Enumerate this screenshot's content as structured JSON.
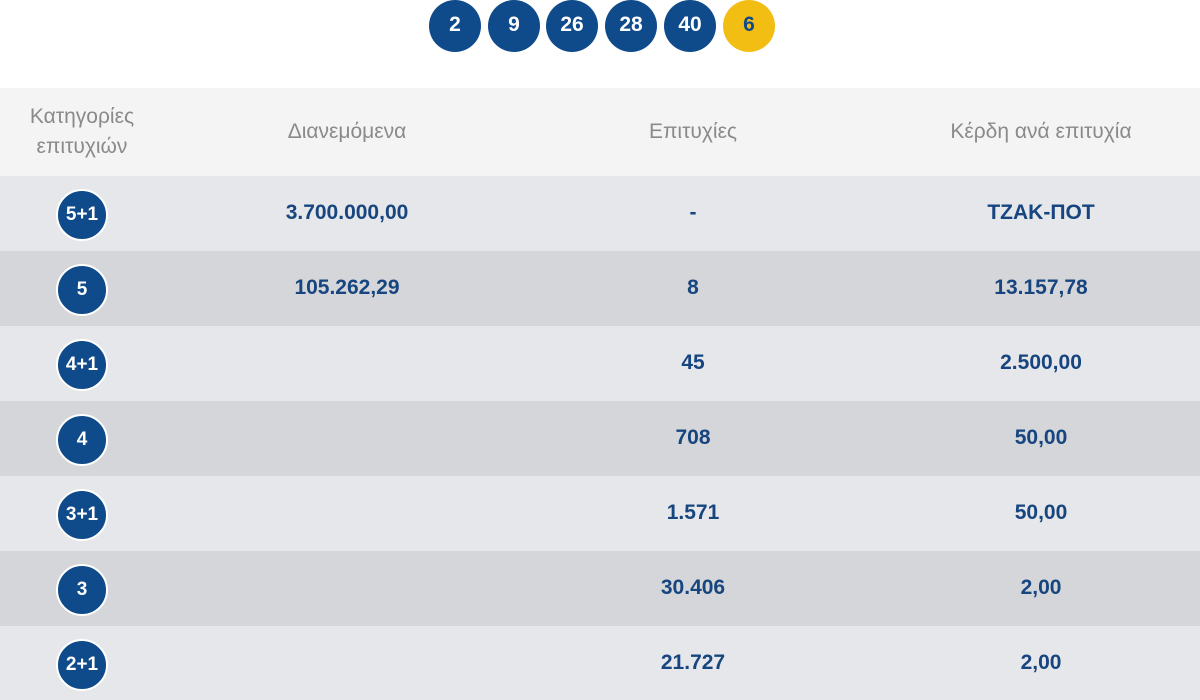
{
  "winning_numbers": {
    "main": [
      "2",
      "9",
      "26",
      "28",
      "40"
    ],
    "joker": "6"
  },
  "colors": {
    "ball_blue": "#0f4a8a",
    "joker_yellow": "#f3be13",
    "text_blue": "#17457f",
    "header_grey": "#8a8a8a"
  },
  "table": {
    "headers": {
      "category_line1": "Κατηγορίες",
      "category_line2": "επιτυχιών",
      "distributed": "Διανεμόμενα",
      "winners": "Επιτυχίες",
      "prize_per_winner": "Κέρδη ανά επιτυχία"
    },
    "rows": [
      {
        "category": "5+1",
        "distributed": "3.700.000,00",
        "winners": "-",
        "prize": "ΤΖΑΚ-ΠΟΤ"
      },
      {
        "category": "5",
        "distributed": "105.262,29",
        "winners": "8",
        "prize": "13.157,78"
      },
      {
        "category": "4+1",
        "distributed": "",
        "winners": "45",
        "prize": "2.500,00"
      },
      {
        "category": "4",
        "distributed": "",
        "winners": "708",
        "prize": "50,00"
      },
      {
        "category": "3+1",
        "distributed": "",
        "winners": "1.571",
        "prize": "50,00"
      },
      {
        "category": "3",
        "distributed": "",
        "winners": "30.406",
        "prize": "2,00"
      },
      {
        "category": "2+1",
        "distributed": "",
        "winners": "21.727",
        "prize": "2,00"
      }
    ]
  }
}
